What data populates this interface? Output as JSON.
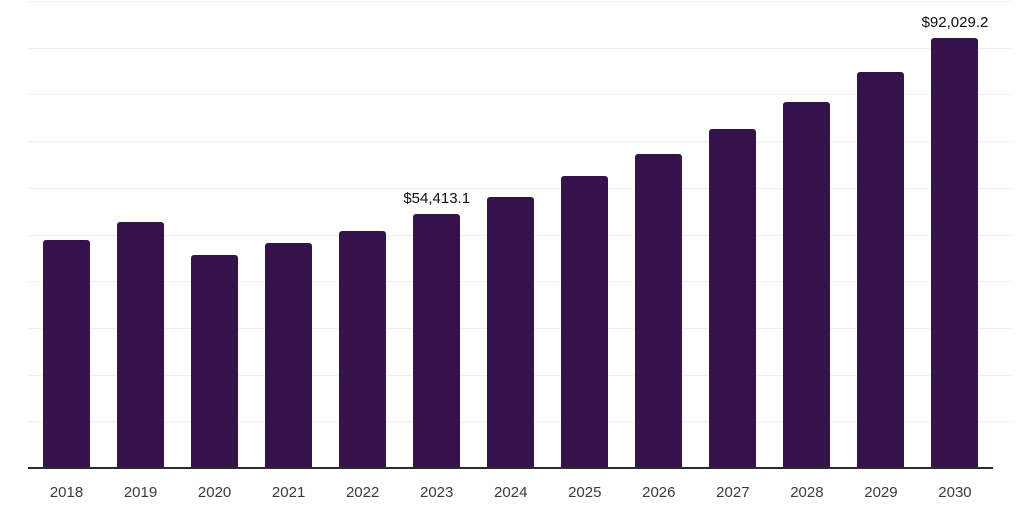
{
  "chart_data": {
    "type": "bar",
    "title": "",
    "categories": [
      "2018",
      "2019",
      "2020",
      "2021",
      "2022",
      "2023",
      "2024",
      "2025",
      "2026",
      "2027",
      "2028",
      "2029",
      "2030"
    ],
    "values": [
      48800,
      52700,
      45600,
      48200,
      50800,
      54413.1,
      58000,
      62500,
      67200,
      72600,
      78400,
      84800,
      92029.2
    ],
    "data_labels": [
      null,
      null,
      null,
      null,
      null,
      "$54,413.1",
      null,
      null,
      null,
      null,
      null,
      null,
      "$92,029.2"
    ],
    "ylim": [
      0,
      100000
    ],
    "gridline_step": 10000,
    "grid": "horizontal",
    "legend": "none",
    "xlabel": "",
    "ylabel": "",
    "colors": {
      "bar": "#351249",
      "axis_line": "#2b2b2b",
      "gridline": "#f1f1f1",
      "tick_label": "#3b3b3b",
      "data_label": "#0f0f0f",
      "background": "#ffffff"
    }
  }
}
